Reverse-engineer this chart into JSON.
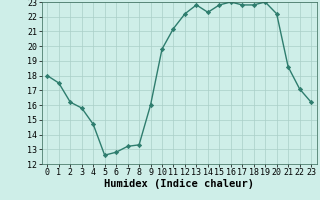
{
  "title": "",
  "xlabel": "Humidex (Indice chaleur)",
  "x": [
    0,
    1,
    2,
    3,
    4,
    5,
    6,
    7,
    8,
    9,
    10,
    11,
    12,
    13,
    14,
    15,
    16,
    17,
    18,
    19,
    20,
    21,
    22,
    23
  ],
  "y": [
    18,
    17.5,
    16.2,
    15.8,
    14.7,
    12.6,
    12.8,
    13.2,
    13.3,
    16.0,
    19.8,
    21.2,
    22.2,
    22.8,
    22.3,
    22.8,
    23.0,
    22.8,
    22.8,
    23.0,
    22.2,
    18.6,
    17.1,
    16.2
  ],
  "ylim": [
    12,
    23
  ],
  "xlim": [
    -0.5,
    23.5
  ],
  "yticks": [
    12,
    13,
    14,
    15,
    16,
    17,
    18,
    19,
    20,
    21,
    22,
    23
  ],
  "xticks": [
    0,
    1,
    2,
    3,
    4,
    5,
    6,
    7,
    8,
    9,
    10,
    11,
    12,
    13,
    14,
    15,
    16,
    17,
    18,
    19,
    20,
    21,
    22,
    23
  ],
  "line_color": "#2e7d6e",
  "marker": "D",
  "markersize": 2.2,
  "linewidth": 1.0,
  "bg_color": "#ceeee8",
  "grid_color": "#aacfc8",
  "tick_label_fontsize": 6.0,
  "xlabel_fontsize": 7.5
}
